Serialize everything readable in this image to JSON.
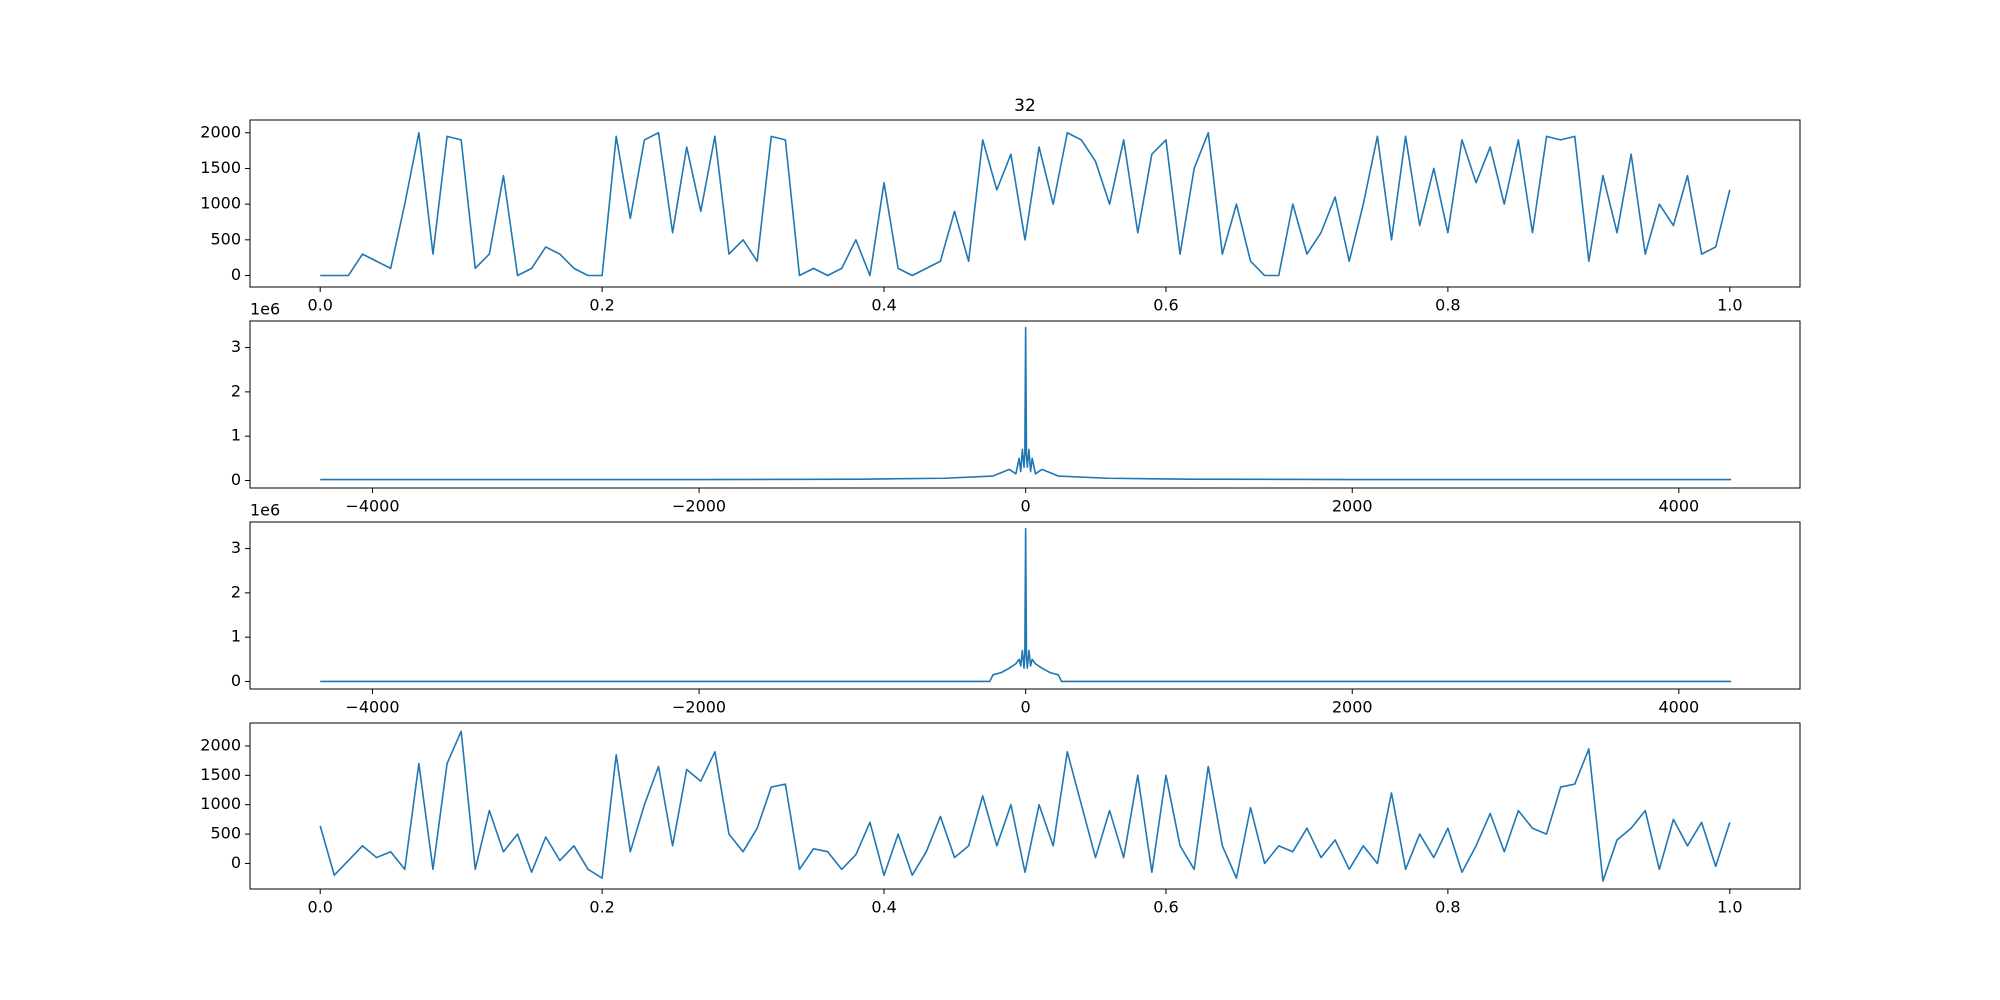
{
  "chart_data": [
    {
      "type": "line",
      "title": "32",
      "color": "#1f77b4",
      "x": [
        0,
        0.01,
        0.02,
        0.03,
        0.04,
        0.05,
        0.06,
        0.07,
        0.08,
        0.09,
        0.1,
        0.11,
        0.12,
        0.13,
        0.14,
        0.15,
        0.16,
        0.17,
        0.18,
        0.19,
        0.2,
        0.21,
        0.22,
        0.23,
        0.24,
        0.25,
        0.26,
        0.27,
        0.28,
        0.29,
        0.3,
        0.31,
        0.32,
        0.33,
        0.34,
        0.35,
        0.36,
        0.37,
        0.38,
        0.39,
        0.4,
        0.41,
        0.42,
        0.43,
        0.44,
        0.45,
        0.46,
        0.47,
        0.48,
        0.49,
        0.5,
        0.51,
        0.52,
        0.53,
        0.54,
        0.55,
        0.56,
        0.57,
        0.58,
        0.59,
        0.6,
        0.61,
        0.62,
        0.63,
        0.64,
        0.65,
        0.66,
        0.67,
        0.68,
        0.69,
        0.7,
        0.71,
        0.72,
        0.73,
        0.74,
        0.75,
        0.76,
        0.77,
        0.78,
        0.79,
        0.8,
        0.81,
        0.82,
        0.83,
        0.84,
        0.85,
        0.86,
        0.87,
        0.88,
        0.89,
        0.9,
        0.91,
        0.92,
        0.93,
        0.94,
        0.95,
        0.96,
        0.97,
        0.98,
        0.99,
        1
      ],
      "values": [
        0,
        0,
        0,
        300,
        200,
        100,
        1000,
        2000,
        300,
        1950,
        1900,
        100,
        300,
        1400,
        0,
        100,
        400,
        300,
        100,
        0,
        0,
        1950,
        800,
        1900,
        2000,
        600,
        1800,
        900,
        1950,
        300,
        500,
        200,
        1950,
        1900,
        0,
        100,
        0,
        100,
        500,
        0,
        1300,
        100,
        0,
        100,
        200,
        900,
        200,
        1900,
        1200,
        1700,
        500,
        1800,
        1000,
        2000,
        1900,
        1600,
        1000,
        1900,
        600,
        1700,
        1900,
        300,
        1500,
        2000,
        300,
        1000,
        200,
        0,
        0,
        1000,
        300,
        600,
        1100,
        200,
        1000,
        1950,
        500,
        1950,
        700,
        1500,
        600,
        1900,
        1300,
        1800,
        1000,
        1900,
        600,
        1950,
        1900,
        1950,
        200,
        1400,
        600,
        1700,
        300,
        1000,
        700,
        1400,
        300,
        400,
        1200
      ],
      "xlim": [
        -0.0498,
        1.0498
      ],
      "ylim": [
        -161,
        2179
      ],
      "xticks": [
        {
          "value": 0,
          "label": "0.0"
        },
        0.2,
        0.4,
        0.6,
        0.8,
        {
          "value": 1,
          "label": "1.0"
        }
      ],
      "yticks": [
        0,
        500,
        1000,
        1500,
        2000
      ]
    },
    {
      "type": "line",
      "y_offset_label": "1e6",
      "color": "#1f77b4",
      "x": [
        -4320,
        -3000,
        -2000,
        -1000,
        -500,
        -200,
        -100,
        -60,
        -40,
        -30,
        -20,
        -10,
        -5,
        0,
        5,
        10,
        20,
        30,
        40,
        60,
        100,
        200,
        500,
        1000,
        2000,
        3000,
        4320
      ],
      "values": [
        0.02,
        0.02,
        0.02,
        0.03,
        0.05,
        0.1,
        0.25,
        0.15,
        0.5,
        0.2,
        0.7,
        0.3,
        0.6,
        3.45,
        0.6,
        0.3,
        0.7,
        0.2,
        0.5,
        0.15,
        0.25,
        0.1,
        0.05,
        0.03,
        0.02,
        0.02,
        0.02
      ],
      "xlim": [
        -4750,
        4742
      ],
      "ylim": [
        -0.17,
        3.6
      ],
      "xticks": [
        {
          "value": -4000,
          "label": "−4000"
        },
        {
          "value": -2000,
          "label": "−2000"
        },
        0,
        2000,
        4000
      ],
      "yticks": [
        0,
        1,
        2,
        3
      ]
    },
    {
      "type": "line",
      "y_offset_label": "1e6",
      "color": "#1f77b4",
      "x": [
        -4320,
        -3000,
        -2000,
        -1000,
        -220,
        -200,
        -150,
        -100,
        -60,
        -40,
        -30,
        -20,
        -10,
        -5,
        0,
        5,
        10,
        20,
        30,
        40,
        60,
        100,
        150,
        200,
        220,
        1000,
        2000,
        3000,
        4320
      ],
      "values": [
        0,
        0,
        0,
        0,
        0,
        0.15,
        0.2,
        0.3,
        0.4,
        0.5,
        0.35,
        0.7,
        0.3,
        0.6,
        3.45,
        0.6,
        0.3,
        0.7,
        0.35,
        0.5,
        0.4,
        0.3,
        0.2,
        0.15,
        0,
        0,
        0,
        0,
        0
      ],
      "xlim": [
        -4750,
        4742
      ],
      "ylim": [
        -0.17,
        3.6
      ],
      "xticks": [
        {
          "value": -4000,
          "label": "−4000"
        },
        {
          "value": -2000,
          "label": "−2000"
        },
        0,
        2000,
        4000
      ],
      "yticks": [
        0,
        1,
        2,
        3
      ]
    },
    {
      "type": "line",
      "color": "#1f77b4",
      "x": [
        0,
        0.01,
        0.02,
        0.03,
        0.04,
        0.05,
        0.06,
        0.07,
        0.08,
        0.09,
        0.1,
        0.11,
        0.12,
        0.13,
        0.14,
        0.15,
        0.16,
        0.17,
        0.18,
        0.19,
        0.2,
        0.21,
        0.22,
        0.23,
        0.24,
        0.25,
        0.26,
        0.27,
        0.28,
        0.29,
        0.3,
        0.31,
        0.32,
        0.33,
        0.34,
        0.35,
        0.36,
        0.37,
        0.38,
        0.39,
        0.4,
        0.41,
        0.42,
        0.43,
        0.44,
        0.45,
        0.46,
        0.47,
        0.48,
        0.49,
        0.5,
        0.51,
        0.52,
        0.53,
        0.54,
        0.55,
        0.56,
        0.57,
        0.58,
        0.59,
        0.6,
        0.61,
        0.62,
        0.63,
        0.64,
        0.65,
        0.66,
        0.67,
        0.68,
        0.69,
        0.7,
        0.71,
        0.72,
        0.73,
        0.74,
        0.75,
        0.76,
        0.77,
        0.78,
        0.79,
        0.8,
        0.81,
        0.82,
        0.83,
        0.84,
        0.85,
        0.86,
        0.87,
        0.88,
        0.89,
        0.9,
        0.91,
        0.92,
        0.93,
        0.94,
        0.95,
        0.96,
        0.97,
        0.98,
        0.99,
        1
      ],
      "values": [
        640,
        -200,
        50,
        300,
        100,
        200,
        -100,
        1700,
        -100,
        1700,
        2250,
        -100,
        900,
        200,
        500,
        -150,
        450,
        50,
        300,
        -100,
        -250,
        1850,
        200,
        1000,
        1650,
        300,
        1600,
        1400,
        1900,
        500,
        200,
        600,
        1300,
        1350,
        -100,
        250,
        200,
        -100,
        150,
        700,
        -200,
        500,
        -200,
        200,
        800,
        100,
        300,
        1150,
        300,
        1000,
        -150,
        1000,
        300,
        1900,
        1000,
        100,
        900,
        100,
        1500,
        -150,
        1500,
        300,
        -100,
        1650,
        300,
        -250,
        950,
        0,
        300,
        200,
        600,
        100,
        400,
        -100,
        300,
        0,
        1200,
        -100,
        500,
        100,
        600,
        -150,
        300,
        850,
        200,
        900,
        600,
        500,
        1300,
        1350,
        1950,
        -300,
        400,
        600,
        900,
        -100,
        750,
        300,
        700,
        -50,
        700
      ],
      "xlim": [
        -0.0498,
        1.0498
      ],
      "ylim": [
        -435,
        2391
      ],
      "xticks": [
        {
          "value": 0,
          "label": "0.0"
        },
        0.2,
        0.4,
        0.6,
        0.8,
        {
          "value": 1,
          "label": "1.0"
        }
      ],
      "yticks": [
        0,
        500,
        1000,
        1500,
        2000
      ]
    }
  ]
}
